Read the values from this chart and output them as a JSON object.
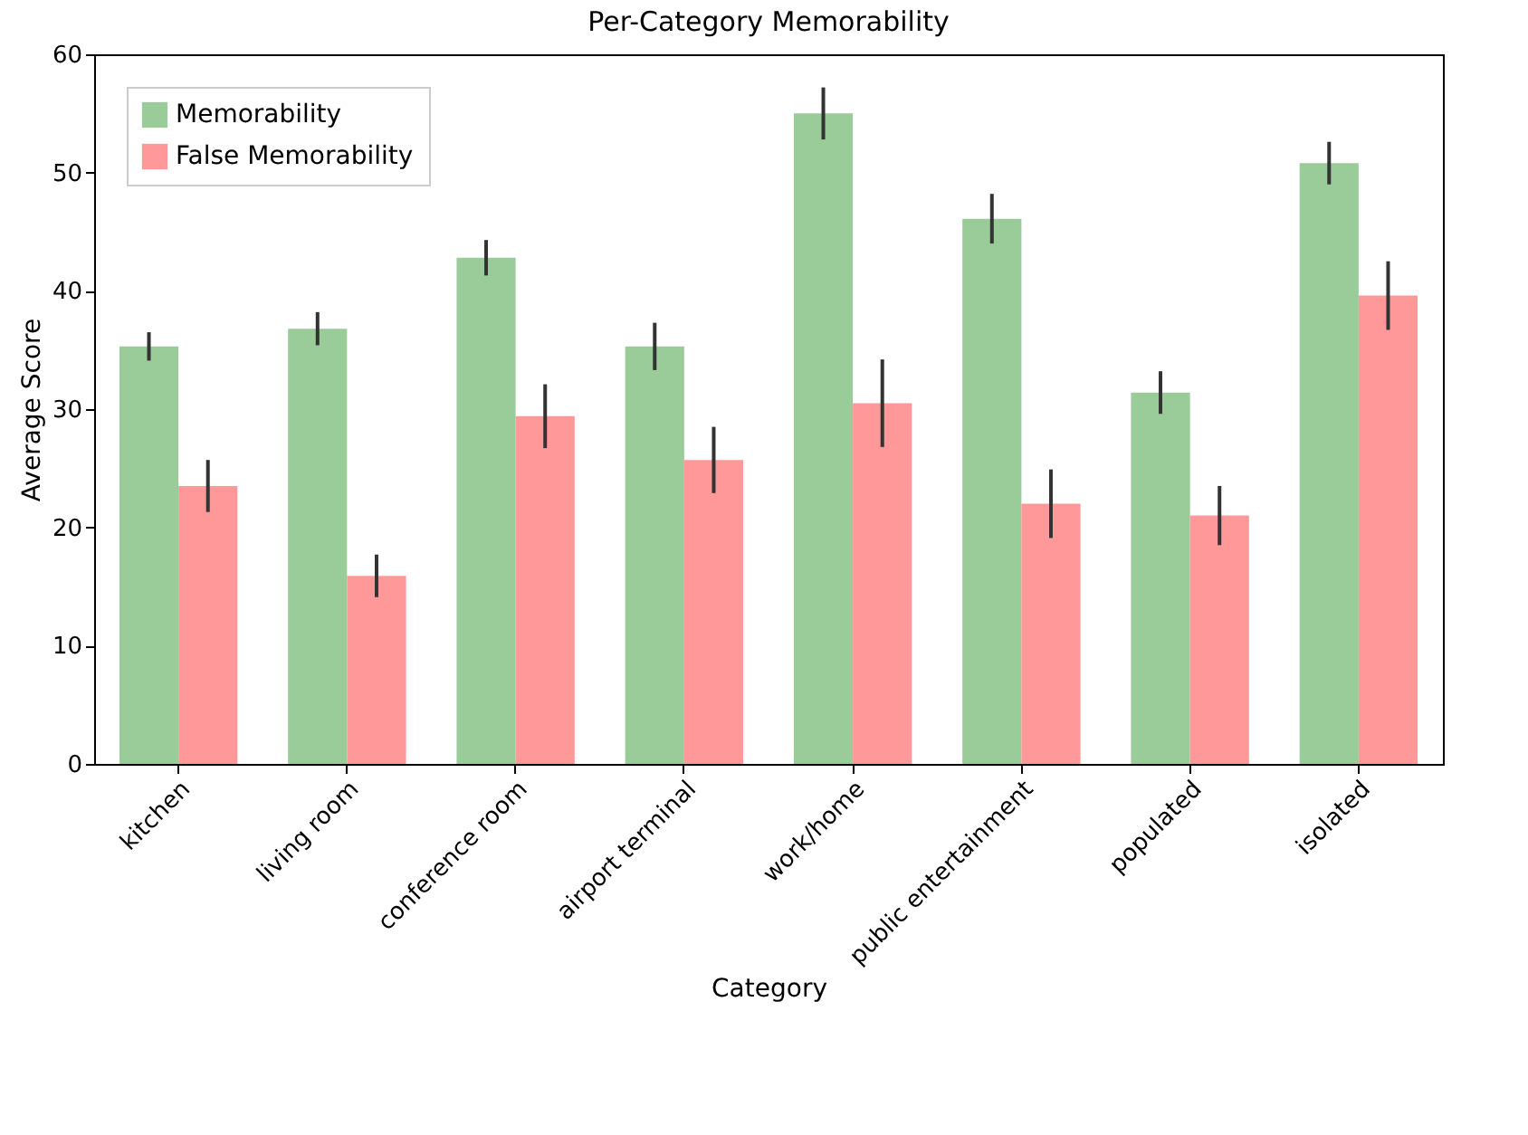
{
  "chart_data": {
    "type": "bar",
    "title": "Per-Category Memorability",
    "xlabel": "Category",
    "ylabel": "Average Score",
    "categories": [
      "kitchen",
      "living room",
      "conference room",
      "airport terminal",
      "work/home",
      "public entertainment",
      "populated",
      "isolated"
    ],
    "series": [
      {
        "name": "Memorability",
        "color": "#99cc99",
        "values": [
          35.3,
          36.8,
          42.8,
          35.3,
          55.0,
          46.1,
          31.4,
          50.8
        ],
        "errors": [
          1.2,
          1.4,
          1.5,
          2.0,
          2.2,
          2.1,
          1.8,
          1.8
        ]
      },
      {
        "name": " False Memorability",
        "color": "#ff9999",
        "values": [
          23.5,
          15.9,
          29.4,
          25.7,
          30.5,
          22.0,
          21.0,
          39.6
        ],
        "errors": [
          2.2,
          1.8,
          2.7,
          2.8,
          3.7,
          2.9,
          2.5,
          2.9
        ]
      }
    ],
    "ylim": [
      0,
      60
    ],
    "yticks": [
      0,
      10,
      20,
      30,
      40,
      50,
      60
    ],
    "grid": false,
    "legend": "top left"
  }
}
